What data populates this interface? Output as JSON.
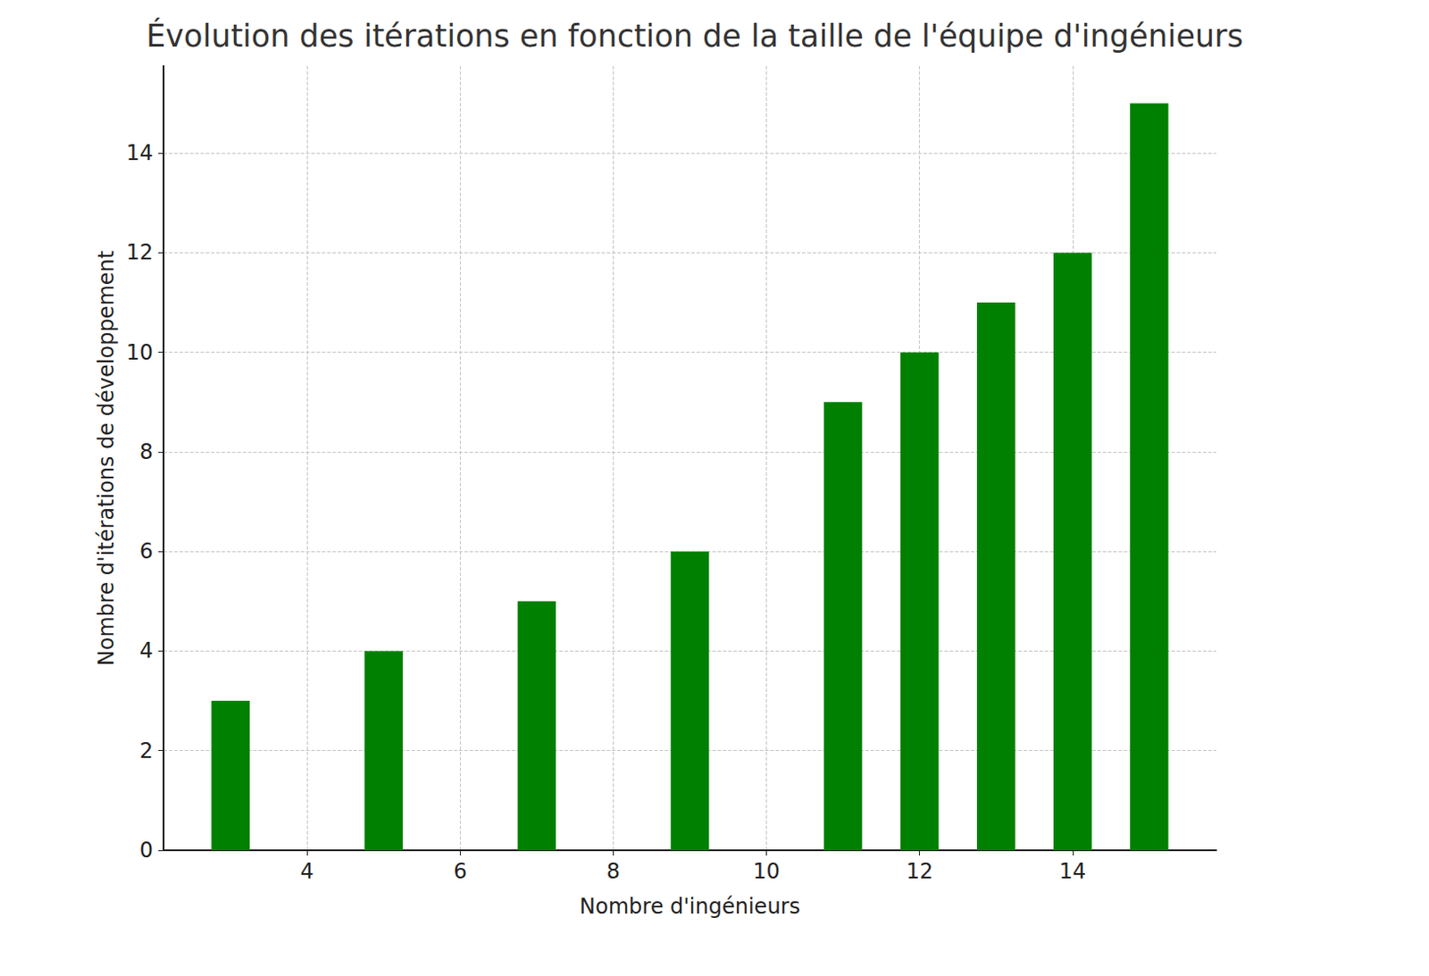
{
  "chart_data": {
    "type": "bar",
    "title": "Évolution des itérations en fonction de la taille de l'équipe d'ingénieurs",
    "x_label": "Nombre d'ingénieurs",
    "y_label": "Nombre d'itérations de développement",
    "x": [
      3,
      5,
      7,
      9,
      11,
      12,
      13,
      14,
      15
    ],
    "values": [
      3,
      4,
      5,
      6,
      9,
      10,
      11,
      12,
      15
    ],
    "color": "#008000",
    "xlim": [
      2.125,
      15.875
    ],
    "xticks": [
      4,
      6,
      8,
      10,
      12,
      14
    ],
    "ylim": [
      0,
      15.75
    ],
    "yticks": [
      0,
      2,
      4,
      6,
      8,
      10,
      12,
      14
    ],
    "grid": true
  }
}
